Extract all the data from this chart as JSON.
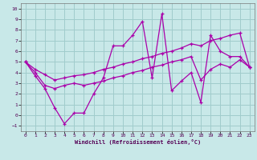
{
  "title": "",
  "xlabel": "Windchill (Refroidissement éolien,°C)",
  "background_color": "#c8e8e8",
  "grid_color": "#a0cccc",
  "line_color": "#aa00aa",
  "xlim": [
    -0.5,
    23.5
  ],
  "ylim": [
    -1.5,
    10.5
  ],
  "xticks": [
    0,
    1,
    2,
    3,
    4,
    5,
    6,
    7,
    8,
    9,
    10,
    11,
    12,
    13,
    14,
    15,
    16,
    17,
    18,
    19,
    20,
    21,
    22,
    23
  ],
  "yticks": [
    -1,
    0,
    1,
    2,
    3,
    4,
    5,
    6,
    7,
    8,
    9,
    10
  ],
  "series": [
    [
      5.0,
      3.7,
      2.5,
      0.7,
      -0.8,
      0.2,
      0.2,
      2.0,
      3.5,
      6.5,
      6.5,
      7.5,
      8.8,
      3.5,
      9.5,
      2.3,
      3.2,
      4.0,
      1.2,
      7.5,
      6.0,
      5.5,
      5.5,
      4.5
    ],
    [
      5.0,
      4.3,
      3.8,
      3.3,
      3.5,
      3.7,
      3.8,
      4.0,
      4.3,
      4.5,
      4.8,
      5.0,
      5.3,
      5.5,
      5.8,
      6.0,
      6.3,
      6.7,
      6.5,
      7.0,
      7.2,
      7.5,
      7.7,
      4.5
    ],
    [
      5.0,
      4.0,
      2.8,
      2.5,
      2.8,
      3.0,
      2.8,
      3.0,
      3.2,
      3.5,
      3.7,
      4.0,
      4.2,
      4.5,
      4.7,
      5.0,
      5.2,
      5.5,
      3.3,
      4.3,
      4.8,
      4.5,
      5.2,
      4.5
    ]
  ]
}
